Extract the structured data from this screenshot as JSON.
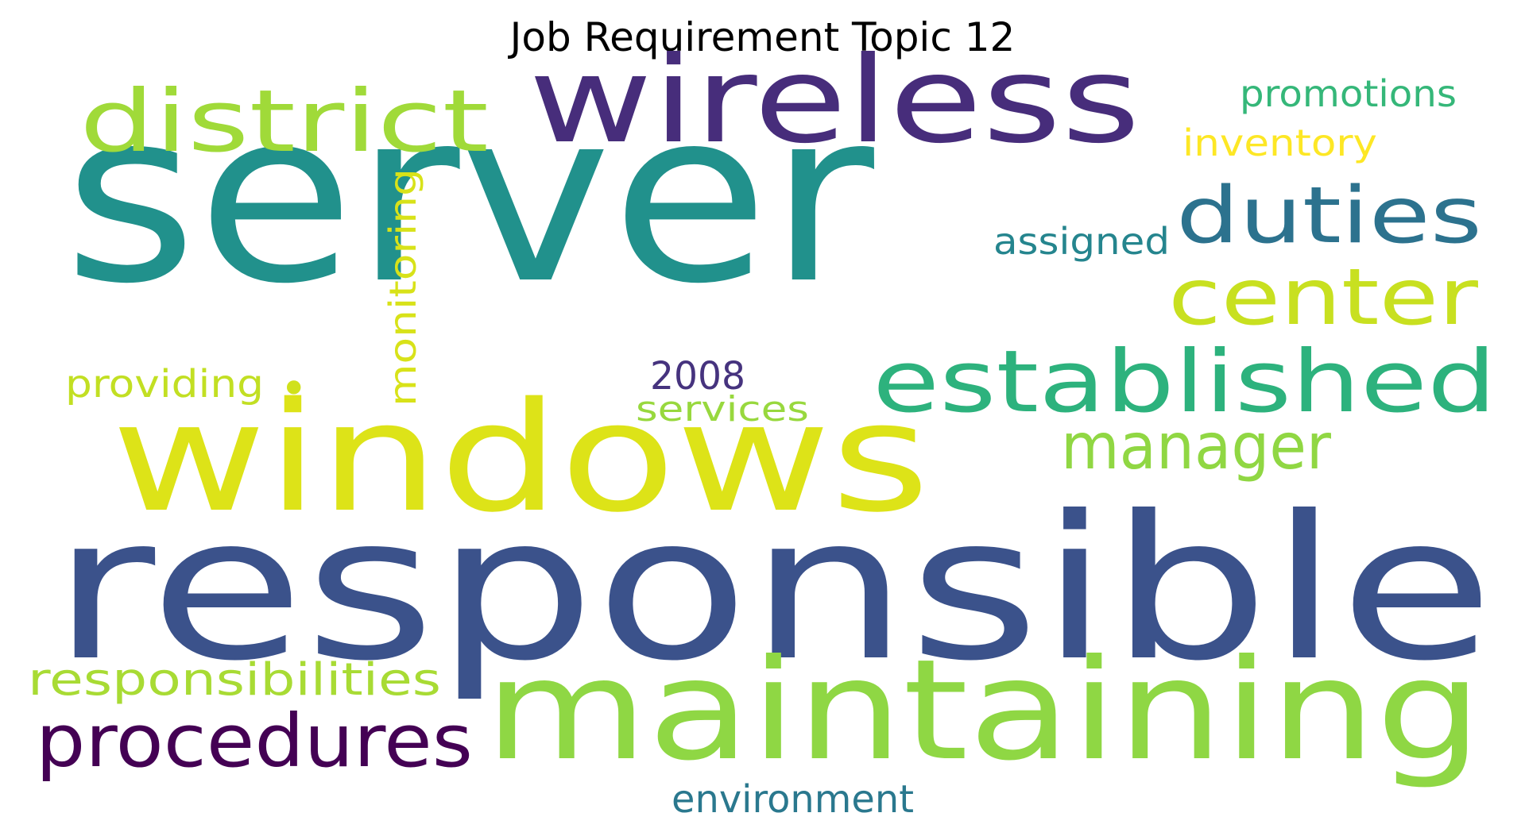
{
  "title": "Job Requirement Topic 12",
  "words": [
    {
      "text": "server",
      "color": "#21918c"
    },
    {
      "text": "responsible",
      "color": "#3b528b"
    },
    {
      "text": "windows",
      "color": "#dde318"
    },
    {
      "text": "wireless",
      "color": "#472d7b"
    },
    {
      "text": "maintaining",
      "color": "#8fd744"
    },
    {
      "text": "established",
      "color": "#2db27d"
    },
    {
      "text": "district",
      "color": "#a0da39"
    },
    {
      "text": "duties",
      "color": "#2c728e"
    },
    {
      "text": "center",
      "color": "#c8e020"
    },
    {
      "text": "procedures",
      "color": "#440154"
    },
    {
      "text": "manager",
      "color": "#90d743"
    },
    {
      "text": "responsibilities",
      "color": "#a8db34"
    },
    {
      "text": "monitoring",
      "color": "#d8e219"
    },
    {
      "text": "promotions",
      "color": "#35b779"
    },
    {
      "text": "inventory",
      "color": "#fde725"
    },
    {
      "text": "assigned",
      "color": "#25858e"
    },
    {
      "text": "2008",
      "color": "#46337e"
    },
    {
      "text": "providing",
      "color": "#c2df23"
    },
    {
      "text": "services",
      "color": "#98d83e"
    },
    {
      "text": "environment",
      "color": "#2a788e"
    },
    {
      "text": "•",
      "color": "#d0e11c"
    }
  ]
}
